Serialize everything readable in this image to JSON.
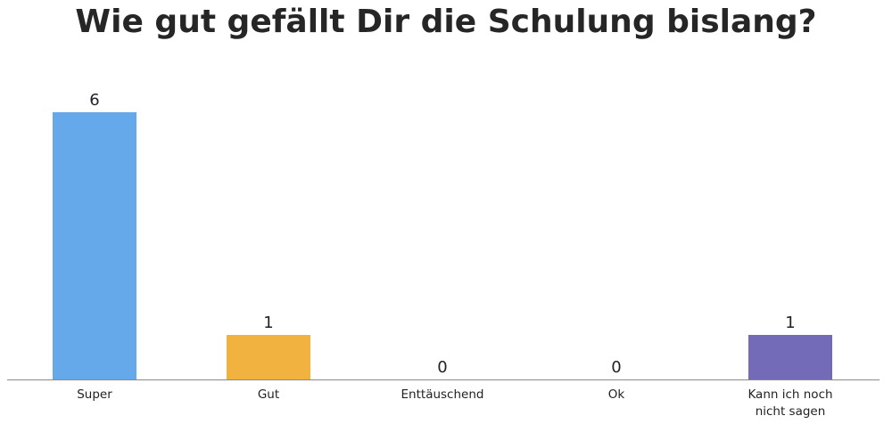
{
  "chart_data": {
    "type": "bar",
    "title": "Wie gut gefällt Dir die Schulung bislang?",
    "categories": [
      "Super",
      "Gut",
      "Enttäuschend",
      "Ok",
      "Kann ich noch nicht sagen"
    ],
    "category_lines": [
      [
        "Super"
      ],
      [
        "Gut"
      ],
      [
        "Enttäuschend"
      ],
      [
        "Ok"
      ],
      [
        "Kann ich noch",
        "nicht sagen"
      ]
    ],
    "values": [
      6,
      1,
      0,
      0,
      1
    ],
    "value_labels": [
      "6",
      "1",
      "0",
      "0",
      "1"
    ],
    "colors": [
      "#65a9ea",
      "#f2b23f",
      "#e06666",
      "#59c28a",
      "#746bb8"
    ],
    "ylim": [
      0,
      6
    ],
    "grid": false,
    "axis_color": "#8a8a8a"
  }
}
